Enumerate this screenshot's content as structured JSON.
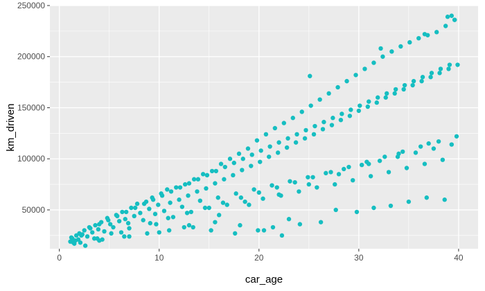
{
  "chart_data": {
    "type": "scatter",
    "title": "",
    "xlabel": "car_age",
    "ylabel": "km_driven",
    "xlim": [
      -0.95,
      41.95
    ],
    "ylim": [
      12000,
      250000
    ],
    "xticks": [
      0,
      10,
      20,
      30,
      40
    ],
    "yticks": [
      50000,
      100000,
      150000,
      200000,
      250000
    ],
    "xtick_labels": [
      "0",
      "10",
      "20",
      "30",
      "40"
    ],
    "ytick_labels": [
      "50000",
      "100000",
      "150000",
      "200000",
      "250000"
    ],
    "grid": true,
    "legend": "none",
    "point_color": "#16BEC1",
    "panel_color": "#EBEBEB",
    "grid_color": "#FFFFFF",
    "x": [
      1.1,
      1.3,
      1.5,
      1.7,
      1.9,
      2.1,
      2.3,
      1.2,
      1.6,
      2.0,
      2.5,
      2.8,
      3.0,
      3.3,
      3.6,
      3.9,
      4.2,
      4.5,
      4.8,
      5.1,
      5.4,
      5.7,
      6.0,
      6.3,
      6.6,
      6.9,
      7.2,
      7.5,
      7.8,
      8.1,
      8.4,
      8.7,
      9.0,
      9.3,
      9.6,
      9.9,
      10.2,
      10.5,
      10.8,
      11.1,
      11.4,
      11.7,
      12.0,
      12.3,
      12.6,
      12.9,
      13.2,
      13.5,
      13.8,
      14.1,
      14.4,
      14.7,
      15.0,
      15.3,
      15.6,
      15.9,
      16.2,
      16.5,
      16.8,
      17.1,
      17.4,
      17.7,
      18.0,
      18.3,
      18.6,
      18.9,
      19.2,
      19.5,
      19.8,
      20.1,
      20.4,
      20.7,
      21.0,
      21.3,
      21.6,
      21.9,
      22.2,
      22.5,
      22.8,
      23.1,
      23.4,
      23.7,
      24.0,
      24.3,
      24.6,
      24.9,
      25.2,
      25.5,
      25.8,
      26.1,
      26.4,
      26.7,
      27.0,
      27.3,
      27.6,
      27.9,
      28.2,
      28.5,
      28.8,
      29.1,
      29.4,
      29.7,
      30.0,
      30.3,
      30.6,
      30.9,
      31.2,
      31.5,
      31.8,
      32.1,
      32.4,
      32.7,
      33.0,
      33.3,
      33.6,
      33.9,
      34.2,
      34.5,
      34.8,
      35.1,
      35.4,
      35.7,
      36.0,
      36.3,
      36.6,
      36.9,
      37.2,
      37.5,
      37.8,
      38.1,
      38.4,
      38.7,
      39.0,
      39.3,
      39.6,
      39.9,
      2.2,
      3.1,
      4.0,
      4.9,
      5.8,
      6.7,
      7.6,
      8.5,
      9.4,
      10.3,
      11.2,
      12.1,
      13.0,
      13.9,
      14.8,
      15.7,
      16.6,
      17.5,
      18.4,
      19.3,
      20.2,
      21.1,
      22.0,
      22.9,
      23.8,
      24.7,
      25.6,
      26.5,
      27.4,
      28.3,
      29.2,
      30.1,
      31.0,
      31.9,
      32.8,
      33.7,
      34.6,
      35.5,
      36.4,
      37.3,
      38.2,
      39.1,
      38.9,
      39.3,
      39.6,
      36.6,
      32.2,
      25.1,
      22.3,
      20.5,
      18.1,
      15.6,
      13.4,
      11.0,
      8.8,
      6.5,
      4.3,
      2.6,
      1.4,
      3.5,
      5.2,
      7.0,
      9.1,
      10.9,
      12.8,
      14.6,
      16.4,
      18.2,
      20.0,
      21.8,
      23.6,
      25.4,
      27.2,
      29.0,
      30.8,
      32.6,
      34.4,
      36.2,
      38.0,
      39.8,
      37.0,
      34.0,
      31.0,
      28.0,
      25.0,
      22.0,
      19.0,
      16.0,
      13.0,
      10.0,
      7.0,
      4.0,
      27.7,
      29.8,
      31.5,
      33.2,
      35.0,
      36.8,
      38.6,
      26.2,
      24.1,
      23.0,
      21.4,
      19.9,
      17.6,
      15.2,
      12.5,
      9.7,
      6.2,
      3.8
    ],
    "y": [
      19000,
      22000,
      17000,
      25000,
      21000,
      18000,
      26000,
      23000,
      20000,
      27000,
      30000,
      24000,
      33000,
      28000,
      35000,
      31000,
      38000,
      29000,
      42000,
      36000,
      33000,
      45000,
      39000,
      48000,
      41000,
      37000,
      52000,
      44000,
      56000,
      47000,
      40000,
      58000,
      51000,
      62000,
      46000,
      55000,
      66000,
      49000,
      70000,
      57000,
      43000,
      72000,
      60000,
      53000,
      75000,
      64000,
      48000,
      80000,
      68000,
      59000,
      85000,
      71000,
      52000,
      88000,
      76000,
      62000,
      95000,
      80000,
      55000,
      100000,
      84000,
      66000,
      105000,
      89000,
      58000,
      110000,
      93000,
      70000,
      118000,
      97000,
      61000,
      124000,
      102000,
      74000,
      130000,
      106000,
      64000,
      135000,
      111000,
      78000,
      140000,
      116000,
      68000,
      146000,
      120000,
      82000,
      152000,
      124000,
      72000,
      158000,
      129000,
      86000,
      164000,
      133000,
      75000,
      170000,
      138000,
      90000,
      176000,
      142000,
      79000,
      182000,
      147000,
      94000,
      188000,
      151000,
      83000,
      194000,
      155000,
      98000,
      200000,
      160000,
      87000,
      205000,
      164000,
      102000,
      210000,
      168000,
      91000,
      214000,
      172000,
      106000,
      218000,
      176000,
      95000,
      221000,
      180000,
      110000,
      224000,
      184000,
      99000,
      230000,
      188000,
      114000,
      236000,
      192000,
      25000,
      32000,
      36000,
      40000,
      44000,
      48000,
      52000,
      56000,
      60000,
      64000,
      68000,
      72000,
      76000,
      80000,
      84000,
      88000,
      92000,
      96000,
      100000,
      104000,
      108000,
      112000,
      116000,
      120000,
      124000,
      128000,
      132000,
      136000,
      140000,
      144000,
      148000,
      152000,
      156000,
      160000,
      164000,
      168000,
      172000,
      176000,
      180000,
      184000,
      188000,
      192000,
      239000,
      240000,
      236000,
      222000,
      208000,
      181000,
      25000,
      30000,
      35000,
      38000,
      33000,
      30000,
      27000,
      24000,
      21000,
      15000,
      18000,
      22000,
      27000,
      32000,
      37000,
      42000,
      47000,
      52000,
      57000,
      62000,
      67000,
      72000,
      77000,
      82000,
      87000,
      92000,
      97000,
      102000,
      107000,
      112000,
      117000,
      122000,
      115000,
      105000,
      95000,
      85000,
      75000,
      65000,
      55000,
      45000,
      35000,
      28000,
      24000,
      20000,
      50000,
      48000,
      52000,
      54000,
      58000,
      62000,
      60000,
      38000,
      36000,
      41000,
      33000,
      30000,
      27000,
      30000,
      33000,
      36000,
      28000,
      22000
    ]
  }
}
